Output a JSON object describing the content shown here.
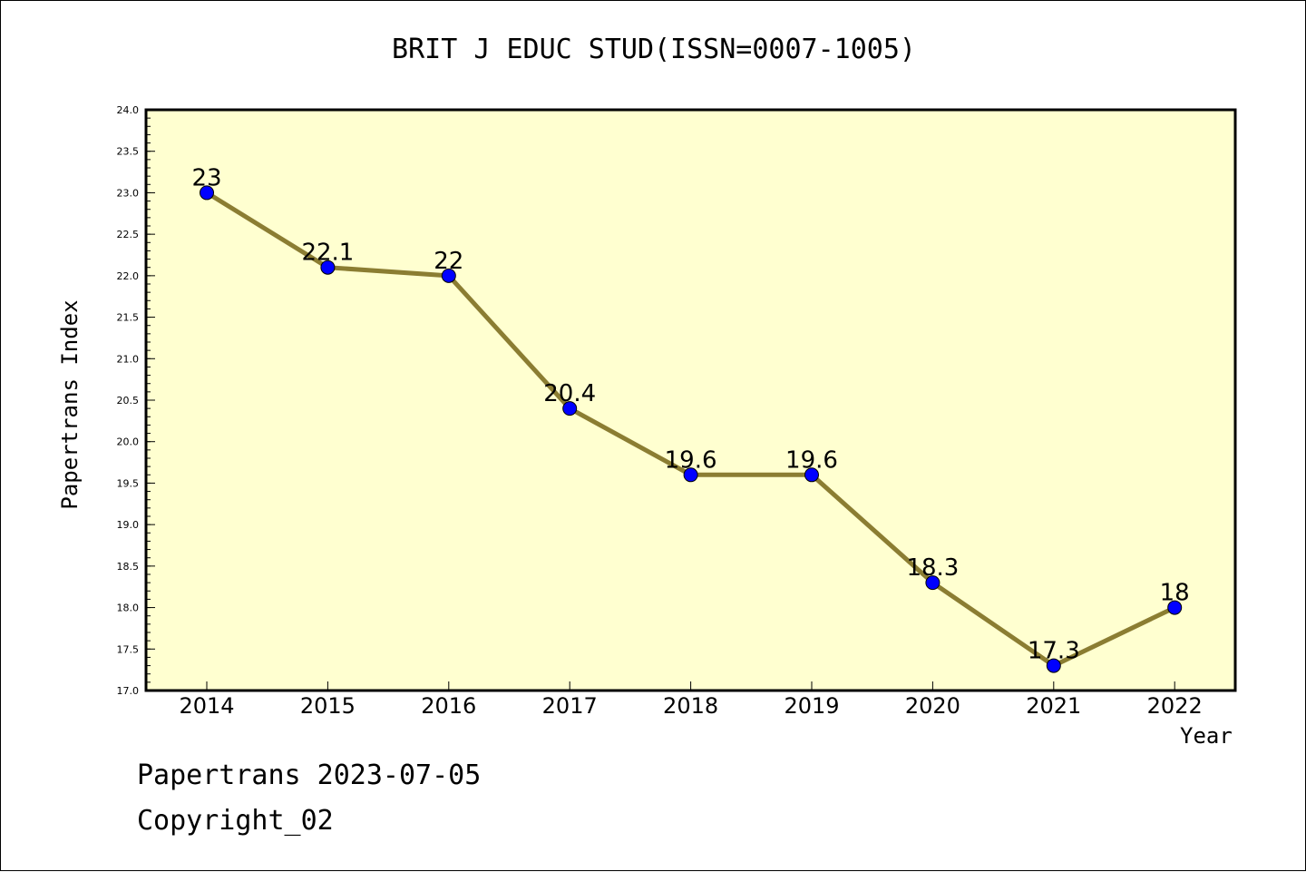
{
  "chart_data": {
    "type": "line",
    "title": "BRIT J EDUC STUD(ISSN=0007-1005)",
    "xlabel": "Year",
    "ylabel": "Papertrans Index",
    "categories": [
      "2014",
      "2015",
      "2016",
      "2017",
      "2018",
      "2019",
      "2020",
      "2021",
      "2022"
    ],
    "values": [
      23,
      22.1,
      22,
      20.4,
      19.6,
      19.6,
      18.3,
      17.3,
      18
    ],
    "data_labels": [
      "23",
      "22.1",
      "22",
      "20.4",
      "19.6",
      "19.6",
      "18.3",
      "17.3",
      "18"
    ],
    "ylim": [
      17.0,
      24.0
    ],
    "y_ticks": [
      "17.0",
      "17.5",
      "18.0",
      "18.5",
      "19.0",
      "19.5",
      "20.0",
      "20.5",
      "21.0",
      "21.5",
      "22.0",
      "22.5",
      "23.0",
      "23.5",
      "24.0"
    ],
    "grid": false,
    "colors": {
      "plot_background": "#ffffd0",
      "line": "#8b7d32",
      "marker": "#0000ff"
    }
  },
  "footer": {
    "line1": "Papertrans 2023-07-05",
    "line2": "Copyright_02"
  }
}
